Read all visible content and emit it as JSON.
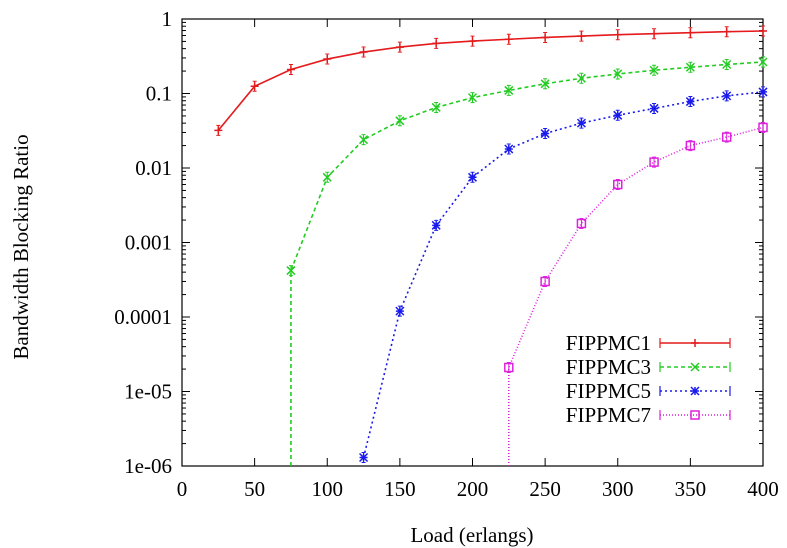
{
  "chart_data": {
    "type": "line",
    "title": "",
    "xlabel": "Load (erlangs)",
    "ylabel": "Bandwidth Blocking Ratio",
    "xlim": [
      0,
      400
    ],
    "ylim": [
      1e-06,
      1
    ],
    "yscale": "log",
    "xticks": [
      0,
      50,
      100,
      150,
      200,
      250,
      300,
      350,
      400
    ],
    "xtick_labels": [
      "0",
      "50",
      "100",
      "150",
      "200",
      "250",
      "300",
      "350",
      "400"
    ],
    "yticks": [
      1e-06,
      1e-05,
      0.0001,
      0.001,
      0.01,
      0.1,
      1
    ],
    "ytick_labels": [
      "1e-06",
      "1e-05",
      "0.0001",
      "0.001",
      "0.01",
      "0.1",
      "1"
    ],
    "grid": false,
    "legend_position": "bottom-right",
    "series": [
      {
        "name": "FIPPMC1",
        "color": "#e41a1c",
        "dash": "",
        "marker": "plus",
        "x": [
          25,
          50,
          75,
          100,
          125,
          150,
          175,
          200,
          225,
          250,
          275,
          300,
          325,
          350,
          375,
          400
        ],
        "y": [
          0.032,
          0.125,
          0.21,
          0.29,
          0.36,
          0.42,
          0.47,
          0.505,
          0.535,
          0.565,
          0.59,
          0.615,
          0.635,
          0.655,
          0.675,
          0.69
        ]
      },
      {
        "name": "FIPPMC3",
        "color": "#22cc22",
        "dash": "4,3",
        "marker": "cross",
        "x": [
          75,
          100,
          125,
          150,
          175,
          200,
          225,
          250,
          275,
          300,
          325,
          350,
          375,
          400
        ],
        "y": [
          0.00042,
          0.0075,
          0.024,
          0.043,
          0.065,
          0.088,
          0.11,
          0.135,
          0.16,
          0.183,
          0.205,
          0.225,
          0.245,
          0.265
        ],
        "drop_to_floor_at": 75
      },
      {
        "name": "FIPPMC5",
        "color": "#1a1aee",
        "dash": "2,3",
        "marker": "star",
        "x": [
          125,
          150,
          175,
          200,
          225,
          250,
          275,
          300,
          325,
          350,
          375,
          400
        ],
        "y": [
          1.3e-06,
          0.00012,
          0.0017,
          0.0075,
          0.018,
          0.029,
          0.04,
          0.051,
          0.063,
          0.078,
          0.093,
          0.105
        ]
      },
      {
        "name": "FIPPMC7",
        "color": "#dd22dd",
        "dash": "1,2",
        "marker": "box",
        "x": [
          225,
          250,
          275,
          300,
          325,
          350,
          375,
          400
        ],
        "y": [
          2.1e-05,
          0.0003,
          0.0018,
          0.006,
          0.012,
          0.02,
          0.026,
          0.035
        ],
        "drop_to_floor_at": 225
      }
    ]
  }
}
